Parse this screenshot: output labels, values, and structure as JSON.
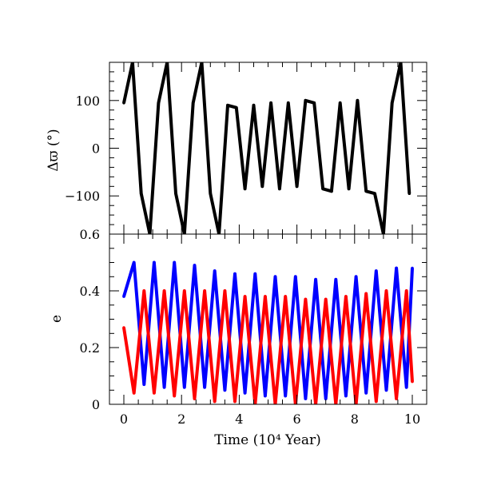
{
  "chart_data": [
    {
      "type": "line",
      "panel": "top",
      "xlabel": "",
      "ylabel": "Δϖ (°)",
      "xlim": [
        -0.5,
        10.5
      ],
      "ylim": [
        -180,
        180
      ],
      "xticks": [],
      "yticks": [
        {
          "value": 100,
          "label": "100"
        },
        {
          "value": 0,
          "label": "0"
        },
        {
          "value": -100,
          "label": "−100"
        }
      ],
      "grid": false,
      "series": [
        {
          "color": "#000000",
          "description_values": "apsidal angle difference, circulating between roughly +90 and ±180 with phase flips near t = 4.0, 4.9, 5.8, 6.8, 7.5, 8.5",
          "x": [
            0.0,
            0.3,
            0.6,
            0.9,
            1.2,
            1.5,
            1.8,
            2.1,
            2.4,
            2.7,
            3.0,
            3.3,
            3.6,
            3.9,
            4.2,
            4.5,
            4.8,
            5.1,
            5.4,
            5.7,
            6.0,
            6.3,
            6.6,
            6.9,
            7.2,
            7.5,
            7.8,
            8.1,
            8.4,
            8.7,
            9.0,
            9.3,
            9.6,
            9.9
          ],
          "y": [
            95,
            180,
            -95,
            -180,
            95,
            180,
            -95,
            -180,
            95,
            180,
            -95,
            -180,
            90,
            85,
            -85,
            90,
            -80,
            95,
            -85,
            95,
            -80,
            100,
            95,
            -85,
            -90,
            95,
            -85,
            100,
            -90,
            -95,
            -180,
            95,
            180,
            -95
          ]
        }
      ]
    },
    {
      "type": "line",
      "panel": "bottom",
      "xlabel": "Time (10⁴ Year)",
      "ylabel": "e",
      "xlim": [
        -0.5,
        10.5
      ],
      "ylim": [
        0,
        0.6
      ],
      "xticks": [
        {
          "value": 0,
          "label": "0"
        },
        {
          "value": 2,
          "label": "2"
        },
        {
          "value": 4,
          "label": "4"
        },
        {
          "value": 6,
          "label": "6"
        },
        {
          "value": 8,
          "label": "8"
        },
        {
          "value": 10,
          "label": "10"
        }
      ],
      "yticks": [
        {
          "value": 0,
          "label": "0"
        },
        {
          "value": 0.2,
          "label": "0.2"
        },
        {
          "value": 0.4,
          "label": "0.4"
        },
        {
          "value": 0.6,
          "label": "0.6"
        }
      ],
      "grid": false,
      "series": [
        {
          "color": "#0000ff",
          "x": [
            0.0,
            0.35,
            0.7,
            1.05,
            1.4,
            1.75,
            2.1,
            2.45,
            2.8,
            3.15,
            3.5,
            3.85,
            4.2,
            4.55,
            4.9,
            5.25,
            5.6,
            5.95,
            6.3,
            6.65,
            7.0,
            7.35,
            7.7,
            8.05,
            8.4,
            8.75,
            9.1,
            9.45,
            9.8,
            10.0
          ],
          "y": [
            0.38,
            0.5,
            0.07,
            0.5,
            0.06,
            0.5,
            0.06,
            0.49,
            0.06,
            0.47,
            0.05,
            0.46,
            0.04,
            0.46,
            0.03,
            0.45,
            0.03,
            0.45,
            0.02,
            0.44,
            0.02,
            0.44,
            0.03,
            0.45,
            0.04,
            0.47,
            0.05,
            0.48,
            0.06,
            0.48
          ]
        },
        {
          "color": "#ff0000",
          "x": [
            0.0,
            0.35,
            0.7,
            1.05,
            1.4,
            1.75,
            2.1,
            2.45,
            2.8,
            3.15,
            3.5,
            3.85,
            4.2,
            4.55,
            4.9,
            5.25,
            5.6,
            5.95,
            6.3,
            6.65,
            7.0,
            7.35,
            7.7,
            8.05,
            8.4,
            8.75,
            9.1,
            9.45,
            9.8,
            10.0
          ],
          "y": [
            0.27,
            0.04,
            0.4,
            0.04,
            0.4,
            0.03,
            0.4,
            0.02,
            0.4,
            0.01,
            0.4,
            0.01,
            0.38,
            0.0,
            0.38,
            0.0,
            0.38,
            0.0,
            0.37,
            0.0,
            0.37,
            0.0,
            0.38,
            0.0,
            0.39,
            0.01,
            0.4,
            0.02,
            0.4,
            0.08
          ]
        }
      ]
    }
  ]
}
